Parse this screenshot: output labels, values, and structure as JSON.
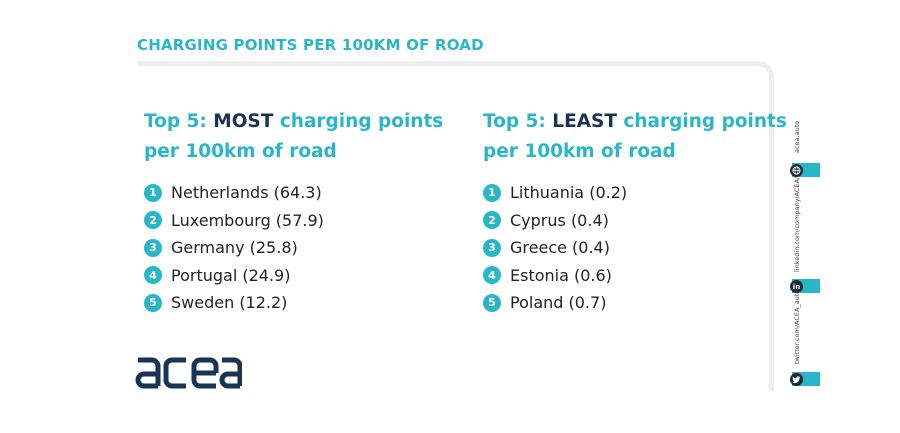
{
  "title": "CHARGING POINTS PER 100KM OF ROAD",
  "most": {
    "heading_pre": "Top 5: ",
    "heading_strong": "MOST",
    "heading_post": " charging points",
    "heading_line2": "per 100km of road",
    "items": [
      {
        "rank": "1",
        "label": "Netherlands (64.3)"
      },
      {
        "rank": "2",
        "label": "Luxembourg (57.9)"
      },
      {
        "rank": "3",
        "label": "Germany (25.8)"
      },
      {
        "rank": "4",
        "label": "Portugal (24.9)"
      },
      {
        "rank": "5",
        "label": "Sweden (12.2)"
      }
    ]
  },
  "least": {
    "heading_pre": "Top 5: ",
    "heading_strong": "LEAST",
    "heading_post": " charging points",
    "heading_line2": "per 100km of road",
    "items": [
      {
        "rank": "1",
        "label": "Lithuania (0.2)"
      },
      {
        "rank": "2",
        "label": "Cyprus (0.4)"
      },
      {
        "rank": "3",
        "label": "Greece (0.4)"
      },
      {
        "rank": "4",
        "label": "Estonia (0.6)"
      },
      {
        "rank": "5",
        "label": "Poland (0.7)"
      }
    ]
  },
  "logo": {
    "text": "acea"
  },
  "social": [
    {
      "name": "website",
      "text": "acea.auto",
      "icon": "globe-icon"
    },
    {
      "name": "linkedin",
      "text": "linkedin.com/company/ACEA/",
      "icon": "linkedin-icon",
      "glyph": "in"
    },
    {
      "name": "twitter",
      "text": "twitter.com/ACEA_auto",
      "icon": "twitter-icon"
    }
  ],
  "colors": {
    "accent": "#29b6c9",
    "navy": "#173553",
    "frame": "#eeeeee"
  }
}
